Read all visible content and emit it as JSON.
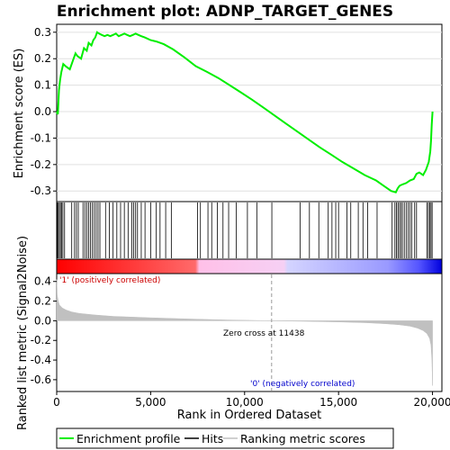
{
  "chart_data": [
    {
      "type": "line",
      "title": "Enrichment plot: ADNP_TARGET_GENES",
      "ylabel": "Enrichment score (ES)",
      "ylim": [
        -0.34,
        0.33
      ],
      "xlim": [
        0,
        20500
      ],
      "yticks": [
        -0.3,
        -0.2,
        -0.1,
        0.0,
        0.1,
        0.2,
        0.3
      ],
      "ytick_labels": [
        "-0.3",
        "-0.2",
        "-0.1",
        "0.0",
        "0.1",
        "0.2",
        "0.3"
      ],
      "series": [
        {
          "name": "Enrichment profile",
          "color": "#00ee00",
          "x": [
            0,
            60,
            120,
            180,
            250,
            350,
            500,
            700,
            850,
            1000,
            1100,
            1300,
            1450,
            1600,
            1700,
            1850,
            1950,
            2050,
            2150,
            2250,
            2400,
            2550,
            2700,
            2850,
            3000,
            3150,
            3300,
            3450,
            3600,
            3750,
            3900,
            4050,
            4200,
            4350,
            4500,
            4700,
            5000,
            5300,
            5700,
            6200,
            6800,
            7400,
            8000,
            8600,
            9200,
            9800,
            10400,
            11000,
            11600,
            12200,
            12800,
            13400,
            14000,
            14600,
            15200,
            15800,
            16400,
            17000,
            17400,
            17800,
            18050,
            18150,
            18250,
            18400,
            18600,
            18800,
            19000,
            19150,
            19300,
            19500,
            19650,
            19800,
            19880,
            19920,
            19960,
            20000
          ],
          "y": [
            0.0,
            -0.01,
            0.08,
            0.12,
            0.15,
            0.18,
            0.17,
            0.16,
            0.19,
            0.22,
            0.21,
            0.2,
            0.24,
            0.23,
            0.26,
            0.25,
            0.27,
            0.28,
            0.3,
            0.295,
            0.29,
            0.285,
            0.29,
            0.285,
            0.29,
            0.295,
            0.285,
            0.29,
            0.295,
            0.29,
            0.285,
            0.29,
            0.295,
            0.29,
            0.285,
            0.28,
            0.27,
            0.265,
            0.255,
            0.235,
            0.205,
            0.172,
            0.15,
            0.127,
            0.1,
            0.073,
            0.045,
            0.015,
            -0.015,
            -0.045,
            -0.075,
            -0.105,
            -0.135,
            -0.162,
            -0.19,
            -0.215,
            -0.24,
            -0.26,
            -0.28,
            -0.3,
            -0.305,
            -0.29,
            -0.28,
            -0.275,
            -0.27,
            -0.26,
            -0.255,
            -0.235,
            -0.23,
            -0.24,
            -0.22,
            -0.19,
            -0.15,
            -0.11,
            -0.05,
            0.0
          ]
        }
      ]
    },
    {
      "type": "hits",
      "series": [
        {
          "name": "Hits",
          "color": "#000000",
          "x": [
            30,
            80,
            140,
            200,
            260,
            330,
            420,
            800,
            950,
            1050,
            1150,
            1400,
            1500,
            1600,
            1700,
            1800,
            1900,
            2000,
            2100,
            2200,
            2300,
            2600,
            2800,
            3000,
            3200,
            3400,
            3600,
            3800,
            4000,
            4100,
            4200,
            4300,
            4500,
            4700,
            5000,
            5300,
            5500,
            5800,
            6100,
            7500,
            7650,
            8050,
            8250,
            8550,
            8850,
            9150,
            9550,
            10150,
            10650,
            11450,
            12950,
            13450,
            13950,
            14450,
            14650,
            14850,
            15000,
            15450,
            15650,
            16050,
            16300,
            16550,
            17050,
            17850,
            18000,
            18080,
            18160,
            18240,
            18320,
            18400,
            18500,
            18600,
            18700,
            18800,
            18900,
            19050,
            19150,
            19700,
            19780,
            19850,
            19920,
            19980
          ]
        }
      ]
    },
    {
      "type": "area",
      "ylabel": "Ranked list metric (Signal2Noise)",
      "xlabel": "Rank in Ordered Dataset",
      "xlim": [
        0,
        20500
      ],
      "ylim": [
        -0.72,
        0.48
      ],
      "xticks": [
        0,
        5000,
        10000,
        15000,
        20000
      ],
      "xtick_labels": [
        "0",
        "5,000",
        "10,000",
        "15,000",
        "20,000"
      ],
      "yticks": [
        -0.6,
        -0.4,
        -0.2,
        0.0,
        0.2,
        0.4
      ],
      "ytick_labels": [
        "-0.6",
        "-0.4",
        "-0.2",
        "0.0",
        "0.2",
        "0.4"
      ],
      "series": [
        {
          "name": "Ranking metric scores",
          "color": "#c0c0c0",
          "x": [
            0,
            30,
            80,
            150,
            300,
            500,
            800,
            1200,
            2000,
            3000,
            5000,
            7000,
            9000,
            11438,
            13000,
            15000,
            16500,
            17500,
            18200,
            18800,
            19200,
            19500,
            19700,
            19850,
            19920,
            19970,
            20000
          ],
          "y": [
            0.42,
            0.26,
            0.2,
            0.16,
            0.13,
            0.11,
            0.09,
            0.075,
            0.06,
            0.045,
            0.03,
            0.018,
            0.008,
            0.0,
            -0.005,
            -0.012,
            -0.02,
            -0.03,
            -0.04,
            -0.055,
            -0.075,
            -0.1,
            -0.13,
            -0.18,
            -0.25,
            -0.4,
            -0.66
          ]
        }
      ],
      "annotations": [
        "'1' (positively correlated)",
        "Zero cross at 11438",
        "'0' (negatively correlated)"
      ],
      "zero_cross": 11438
    }
  ],
  "legend": {
    "placement": "bottom",
    "items": [
      {
        "label": "Enrichment profile",
        "color": "#00ee00"
      },
      {
        "label": "Hits",
        "color": "#000000"
      },
      {
        "label": "Ranking metric scores",
        "color": "#c0c0c0"
      }
    ]
  }
}
